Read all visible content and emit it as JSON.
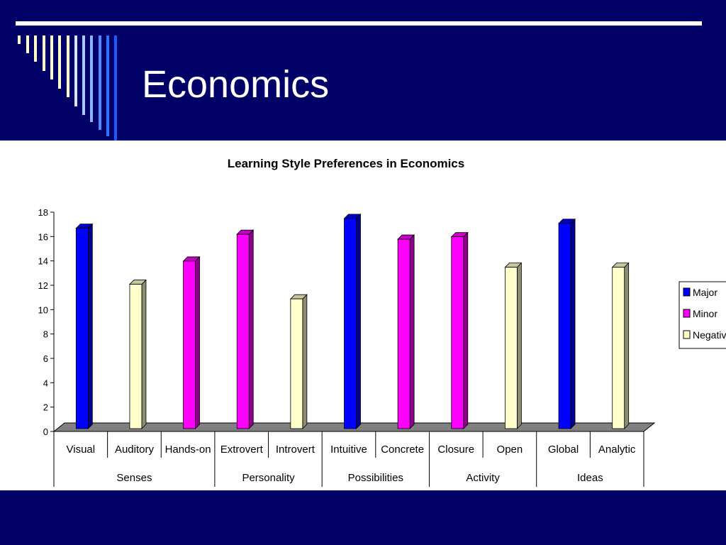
{
  "slide": {
    "title": "Economics",
    "colors": {
      "background": "#000066",
      "rule": "#ffffff",
      "title": "#ffffff"
    }
  },
  "chart_data": {
    "type": "bar",
    "title": "Learning Style Preferences in Economics",
    "categories": [
      "Visual",
      "Auditory",
      "Hands-on",
      "Extrovert",
      "Introvert",
      "Intuitive",
      "Concrete",
      "Closure",
      "Open",
      "Global",
      "Analytic"
    ],
    "groups": [
      {
        "label": "Senses",
        "span": 3
      },
      {
        "label": "Personality",
        "span": 2
      },
      {
        "label": "Possibilities",
        "span": 2
      },
      {
        "label": "Activity",
        "span": 2
      },
      {
        "label": "Ideas",
        "span": 2
      }
    ],
    "values": [
      16.8,
      12.2,
      14.1,
      16.3,
      11.0,
      17.6,
      15.9,
      16.1,
      13.6,
      17.2,
      13.6
    ],
    "bar_series": [
      "Major",
      "Negative",
      "Minor",
      "Minor",
      "Negative",
      "Major",
      "Minor",
      "Minor",
      "Negative",
      "Major",
      "Negative"
    ],
    "legend": [
      {
        "name": "Major",
        "color": "#0000ff"
      },
      {
        "name": "Minor",
        "color": "#ff00ff"
      },
      {
        "name": "Negative",
        "color": "#ffffcc"
      }
    ],
    "legend_position": "right",
    "ylim": [
      0,
      18
    ],
    "yticks": [
      0,
      2,
      4,
      6,
      8,
      10,
      12,
      14,
      16,
      18
    ],
    "grid": false,
    "three_d": true
  }
}
